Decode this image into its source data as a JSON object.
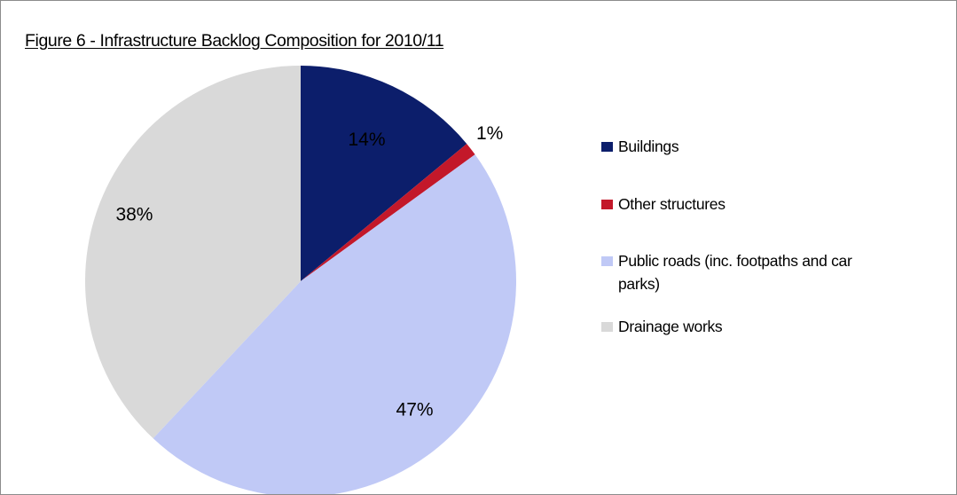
{
  "chart_data": {
    "type": "pie",
    "title": "Figure 6 - Infrastructure Backlog Composition for 2010/11",
    "slices": [
      {
        "name": "Buildings",
        "value": 14,
        "label": "14%",
        "color": "#0c1e6b"
      },
      {
        "name": "Other structures",
        "value": 1,
        "label": "1%",
        "color": "#c3182a"
      },
      {
        "name": "Public roads (inc. footpaths and car parks)",
        "value": 47,
        "label": "47%",
        "color": "#c0c9f6"
      },
      {
        "name": "Drainage works",
        "value": 38,
        "label": "38%",
        "color": "#d9d9d9"
      }
    ],
    "legend": {
      "placement": "right"
    }
  }
}
